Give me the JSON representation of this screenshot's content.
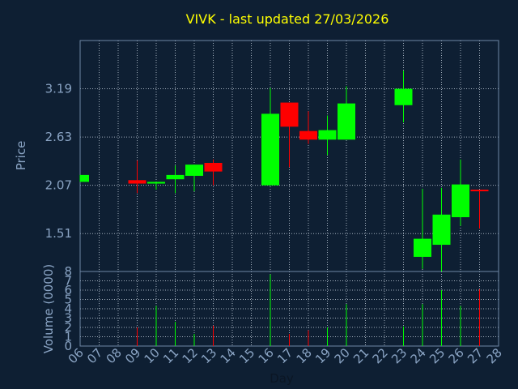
{
  "chart_data": {
    "type": "candlestick",
    "title": "VIVK - last updated 27/03/2026",
    "xlabel": "Day",
    "ylabel": "Price",
    "volume_label": "Volume (0000)",
    "x_ticks": [
      "06",
      "07",
      "08",
      "09",
      "10",
      "11",
      "12",
      "13",
      "14",
      "15",
      "16",
      "17",
      "18",
      "19",
      "20",
      "21",
      "22",
      "23",
      "24",
      "25",
      "26",
      "27",
      "28"
    ],
    "y_ticks": [
      "1.51",
      "2.07",
      "2.63",
      "3.19"
    ],
    "ylim": [
      1.07,
      3.75
    ],
    "volume_ticks": [
      "0",
      "1",
      "2",
      "3",
      "4",
      "5",
      "6",
      "7",
      "8"
    ],
    "volume_lim": [
      0,
      8
    ],
    "grid": true,
    "candles": [
      {
        "day": "06",
        "open": 2.11,
        "close": 2.19,
        "high": 2.19,
        "low": 2.11,
        "volume": 0.0,
        "up": true
      },
      {
        "day": "09",
        "open": 2.13,
        "close": 2.09,
        "high": 2.36,
        "low": 1.98,
        "volume": 2.0,
        "up": false
      },
      {
        "day": "10",
        "open": 2.09,
        "close": 2.11,
        "high": 2.11,
        "low": 2.02,
        "volume": 4.3,
        "up": true
      },
      {
        "day": "11",
        "open": 2.14,
        "close": 2.19,
        "high": 2.3,
        "low": 1.98,
        "volume": 2.6,
        "up": true
      },
      {
        "day": "12",
        "open": 2.18,
        "close": 2.31,
        "high": 2.31,
        "low": 2.0,
        "volume": 1.3,
        "up": true
      },
      {
        "day": "13",
        "open": 2.33,
        "close": 2.23,
        "high": 2.37,
        "low": 2.07,
        "volume": 2.2,
        "up": false
      },
      {
        "day": "16",
        "open": 2.07,
        "close": 2.9,
        "high": 3.2,
        "low": 2.07,
        "volume": 7.7,
        "up": true
      },
      {
        "day": "17",
        "open": 3.03,
        "close": 2.75,
        "high": 3.03,
        "low": 2.28,
        "volume": 1.3,
        "up": false
      },
      {
        "day": "18",
        "open": 2.7,
        "close": 2.6,
        "high": 2.93,
        "low": 2.55,
        "volume": 1.7,
        "up": false
      },
      {
        "day": "19",
        "open": 2.6,
        "close": 2.71,
        "high": 2.88,
        "low": 2.42,
        "volume": 2.0,
        "up": true
      },
      {
        "day": "20",
        "open": 2.6,
        "close": 3.02,
        "high": 3.22,
        "low": 2.6,
        "volume": 4.5,
        "up": true
      },
      {
        "day": "23",
        "open": 3.0,
        "close": 3.19,
        "high": 3.4,
        "low": 2.8,
        "volume": 2.1,
        "up": true
      },
      {
        "day": "24",
        "open": 1.24,
        "close": 1.45,
        "high": 2.03,
        "low": 1.1,
        "volume": 4.5,
        "up": true
      },
      {
        "day": "25",
        "open": 1.38,
        "close": 1.73,
        "high": 2.04,
        "low": 0.95,
        "volume": 6.0,
        "up": true
      },
      {
        "day": "26",
        "open": 1.7,
        "close": 2.08,
        "high": 2.37,
        "low": 1.6,
        "volume": 4.3,
        "up": true
      },
      {
        "day": "27",
        "open": 2.01,
        "close": 2.0,
        "high": 2.01,
        "low": 1.57,
        "volume": 6.1,
        "up": false
      }
    ],
    "colors": {
      "background": "#0e1f33",
      "plot_border": "#6f87a6",
      "grid": "#c8d3e0",
      "up": "#00ff00",
      "down": "#ff0000",
      "title": "#ffff00",
      "axis_text": "#8aa4c4"
    }
  }
}
